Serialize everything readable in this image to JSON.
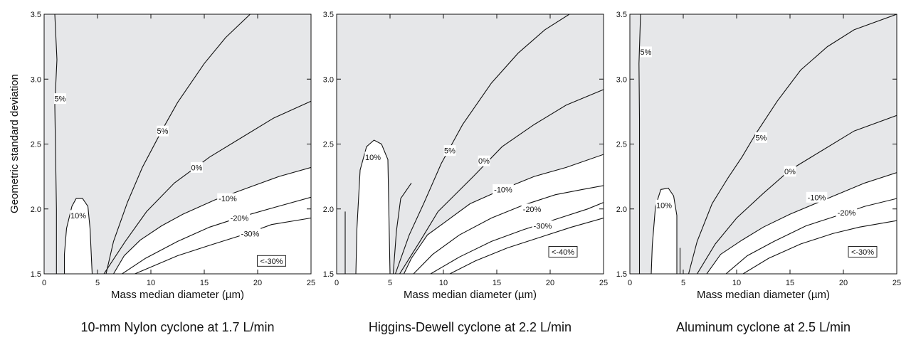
{
  "ylabel": "Geometric standard deviation",
  "chart_data": [
    {
      "type": "contour",
      "caption": "10-mm Nylon cyclone at 1.7 L/min",
      "xlabel": "Mass median diameter (µm)",
      "xlim": [
        0,
        25
      ],
      "ylim": [
        1.5,
        3.5
      ],
      "xticks": [
        0,
        5,
        10,
        15,
        20,
        25
      ],
      "yticks": [
        1.5,
        2.0,
        2.5,
        3.0,
        3.5
      ],
      "shaded_region_color": "#e6e7e9",
      "boundary_label": "<-30%",
      "boundary_label_pos": [
        21.3,
        1.6
      ],
      "unshaded_regions": [
        {
          "name": "10% island",
          "points": [
            [
              1.9,
              1.5
            ],
            [
              1.9,
              1.65
            ],
            [
              2.1,
              1.85
            ],
            [
              2.6,
              2.02
            ],
            [
              3.0,
              2.08
            ],
            [
              3.6,
              2.08
            ],
            [
              4.1,
              2.02
            ],
            [
              4.3,
              1.85
            ],
            [
              4.5,
              1.5
            ]
          ]
        },
        {
          "name": "below -10%",
          "points": [
            [
              25,
              1.5
            ],
            [
              25,
              2.32
            ],
            [
              22,
              2.25
            ],
            [
              19,
              2.16
            ],
            [
              16,
              2.07
            ],
            [
              13,
              1.96
            ],
            [
              11,
              1.87
            ],
            [
              9,
              1.76
            ],
            [
              7.5,
              1.64
            ],
            [
              6.5,
              1.5
            ]
          ]
        }
      ],
      "contours": [
        {
          "level": "5%",
          "points": [
            [
              1.15,
              1.5
            ],
            [
              1.15,
              2.0
            ],
            [
              1.0,
              2.8
            ],
            [
              1.2,
              3.15
            ],
            [
              1.0,
              3.5
            ]
          ],
          "label_pos": [
            1.5,
            2.85
          ]
        },
        {
          "level": "5%",
          "points": [
            [
              5.8,
              1.5
            ],
            [
              6.5,
              1.75
            ],
            [
              7.8,
              2.05
            ],
            [
              9.2,
              2.32
            ],
            [
              11,
              2.6
            ],
            [
              12.5,
              2.82
            ],
            [
              15,
              3.12
            ],
            [
              17,
              3.32
            ],
            [
              19.3,
              3.5
            ]
          ],
          "label_pos": [
            11.1,
            2.6
          ]
        },
        {
          "level": "0%",
          "points": [
            [
              5.6,
              1.5
            ],
            [
              7.6,
              1.75
            ],
            [
              9.6,
              1.98
            ],
            [
              12.2,
              2.2
            ],
            [
              15.5,
              2.4
            ],
            [
              18.5,
              2.55
            ],
            [
              21.5,
              2.7
            ],
            [
              25,
              2.83
            ]
          ],
          "label_pos": [
            14.3,
            2.32
          ]
        },
        {
          "level": "-10%",
          "points": [
            [
              6.5,
              1.5
            ],
            [
              7.5,
              1.64
            ],
            [
              9,
              1.76
            ],
            [
              11,
              1.87
            ],
            [
              13,
              1.96
            ],
            [
              16,
              2.07
            ],
            [
              19,
              2.16
            ],
            [
              22,
              2.25
            ],
            [
              25,
              2.32
            ]
          ],
          "label_pos": [
            17.2,
            2.08
          ]
        },
        {
          "level": "-20%",
          "points": [
            [
              7.3,
              1.5
            ],
            [
              9.5,
              1.62
            ],
            [
              12.5,
              1.75
            ],
            [
              15.5,
              1.86
            ],
            [
              18.5,
              1.94
            ],
            [
              21.5,
              2.01
            ],
            [
              25,
              2.09
            ]
          ],
          "label_pos": [
            18.3,
            1.93
          ]
        },
        {
          "level": "-30%",
          "points": [
            [
              8.5,
              1.5
            ],
            [
              12.5,
              1.64
            ],
            [
              15.5,
              1.72
            ],
            [
              19,
              1.81
            ],
            [
              21.3,
              1.88
            ],
            [
              25,
              1.93
            ]
          ],
          "label_pos": [
            19.3,
            1.81
          ]
        }
      ]
    },
    {
      "type": "contour",
      "caption": "Higgins-Dewell cyclone at 2.2 L/min",
      "xlabel": "Mass median diameter (µm)",
      "xlim": [
        0,
        25
      ],
      "ylim": [
        1.5,
        3.5
      ],
      "xticks": [
        0,
        5,
        10,
        15,
        20,
        25
      ],
      "yticks": [
        1.5,
        2.0,
        2.5,
        3.0,
        3.5
      ],
      "shaded_region_color": "#e6e7e9",
      "boundary_label": "<-40%",
      "boundary_label_pos": [
        21.2,
        1.67
      ],
      "unshaded_regions": [
        {
          "name": "10% island",
          "points": [
            [
              1.8,
              1.5
            ],
            [
              1.9,
              1.85
            ],
            [
              2.2,
              2.3
            ],
            [
              2.8,
              2.48
            ],
            [
              3.5,
              2.53
            ],
            [
              4.2,
              2.5
            ],
            [
              4.8,
              2.38
            ],
            [
              5.0,
              1.5
            ]
          ]
        },
        {
          "name": "below -10%",
          "points": [
            [
              25,
              1.5
            ],
            [
              25,
              2.42
            ],
            [
              21.5,
              2.32
            ],
            [
              18.5,
              2.25
            ],
            [
              15.5,
              2.15
            ],
            [
              12.5,
              2.04
            ],
            [
              10.5,
              1.92
            ],
            [
              8.5,
              1.8
            ],
            [
              7,
              1.62
            ],
            [
              6.3,
              1.5
            ]
          ]
        }
      ],
      "contours": [
        {
          "level": "10%",
          "points": [
            [
              0.8,
              1.5
            ],
            [
              0.8,
              1.98
            ]
          ],
          "label_pos": null
        },
        {
          "level": "5%",
          "points": [
            [
              5.3,
              1.5
            ],
            [
              5.6,
              1.83
            ],
            [
              6,
              2.08
            ],
            [
              7,
              2.2
            ]
          ],
          "label_pos": null
        },
        {
          "level": "5%",
          "points": [
            [
              5.5,
              1.5
            ],
            [
              6.8,
              1.8
            ],
            [
              8.2,
              2.05
            ],
            [
              9.8,
              2.35
            ],
            [
              11.8,
              2.65
            ],
            [
              14.5,
              2.97
            ],
            [
              17,
              3.2
            ],
            [
              19.5,
              3.38
            ],
            [
              21.8,
              3.5
            ]
          ],
          "label_pos": [
            10.6,
            2.45
          ]
        },
        {
          "level": "0%",
          "points": [
            [
              5.9,
              1.5
            ],
            [
              7.8,
              1.75
            ],
            [
              9.5,
              1.98
            ],
            [
              12.8,
              2.25
            ],
            [
              15.5,
              2.48
            ],
            [
              18.5,
              2.65
            ],
            [
              21.5,
              2.8
            ],
            [
              25,
              2.92
            ]
          ],
          "label_pos": [
            13.8,
            2.37
          ]
        },
        {
          "level": "-10%",
          "points": [
            [
              6.3,
              1.5
            ],
            [
              7,
              1.62
            ],
            [
              8.5,
              1.8
            ],
            [
              10.5,
              1.92
            ],
            [
              12.5,
              2.04
            ],
            [
              15.5,
              2.15
            ],
            [
              18.5,
              2.25
            ],
            [
              21.5,
              2.32
            ],
            [
              25,
              2.42
            ]
          ],
          "label_pos": [
            15.6,
            2.15
          ]
        },
        {
          "level": "-20%",
          "points": [
            [
              7.2,
              1.5
            ],
            [
              9,
              1.65
            ],
            [
              11.5,
              1.8
            ],
            [
              14.5,
              1.93
            ],
            [
              17.5,
              2.03
            ],
            [
              20.5,
              2.11
            ],
            [
              23,
              2.15
            ],
            [
              25,
              2.18
            ]
          ],
          "label_pos": [
            18.3,
            2.0
          ]
        },
        {
          "level": "-30%",
          "points": [
            [
              8.8,
              1.5
            ],
            [
              11.5,
              1.63
            ],
            [
              14.5,
              1.75
            ],
            [
              17.5,
              1.84
            ],
            [
              20.5,
              1.92
            ],
            [
              23.5,
              2.0
            ],
            [
              25,
              2.05
            ]
          ],
          "label_pos": [
            19.3,
            1.87
          ]
        },
        {
          "level": "-40%",
          "points": [
            [
              10.6,
              1.5
            ],
            [
              13,
              1.6
            ],
            [
              16,
              1.7
            ],
            [
              19,
              1.78
            ],
            [
              22,
              1.86
            ],
            [
              25,
              1.93
            ]
          ],
          "label_pos": null
        }
      ]
    },
    {
      "type": "contour",
      "caption": "Aluminum cyclone at 2.5 L/min",
      "xlabel": "Mass median diameter (µm)",
      "xlim": [
        0,
        25
      ],
      "ylim": [
        1.5,
        3.5
      ],
      "xticks": [
        0,
        5,
        10,
        15,
        20,
        25
      ],
      "yticks": [
        1.5,
        2.0,
        2.5,
        3.0,
        3.5
      ],
      "shaded_region_color": "#e6e7e9",
      "boundary_label": "<-30%",
      "boundary_label_pos": [
        21.8,
        1.67
      ],
      "unshaded_regions": [
        {
          "name": "10% island",
          "points": [
            [
              2.0,
              1.5
            ],
            [
              2.1,
              1.72
            ],
            [
              2.4,
              2.02
            ],
            [
              2.9,
              2.15
            ],
            [
              3.6,
              2.16
            ],
            [
              4.1,
              2.1
            ],
            [
              4.4,
              1.95
            ],
            [
              4.4,
              1.5
            ]
          ]
        },
        {
          "name": "below -10%",
          "points": [
            [
              25,
              1.5
            ],
            [
              25,
              2.28
            ],
            [
              22,
              2.2
            ],
            [
              18.5,
              2.08
            ],
            [
              15,
              1.96
            ],
            [
              12.5,
              1.86
            ],
            [
              10.5,
              1.76
            ],
            [
              8.5,
              1.65
            ],
            [
              7.2,
              1.5
            ]
          ]
        }
      ],
      "contours": [
        {
          "level": "5%",
          "points": [
            [
              0.9,
              1.5
            ],
            [
              0.9,
              2.7
            ],
            [
              0.85,
              3.12
            ],
            [
              1.0,
              3.5
            ]
          ],
          "label_pos": [
            1.5,
            3.21
          ]
        },
        {
          "level": "5%",
          "points": [
            [
              4.7,
              1.5
            ],
            [
              4.7,
              1.7
            ]
          ],
          "label_pos": null
        },
        {
          "level": "5%",
          "points": [
            [
              5.5,
              1.5
            ],
            [
              6.3,
              1.75
            ],
            [
              7.7,
              2.04
            ],
            [
              9.2,
              2.24
            ],
            [
              10.5,
              2.4
            ],
            [
              11.8,
              2.58
            ],
            [
              13.8,
              2.83
            ],
            [
              16,
              3.07
            ],
            [
              18.5,
              3.25
            ],
            [
              21,
              3.38
            ],
            [
              25,
              3.5
            ]
          ],
          "label_pos": [
            12.3,
            2.55
          ]
        },
        {
          "level": "0%",
          "points": [
            [
              6.3,
              1.5
            ],
            [
              8,
              1.73
            ],
            [
              10,
              1.93
            ],
            [
              12.5,
              2.12
            ],
            [
              15,
              2.3
            ],
            [
              18,
              2.45
            ],
            [
              21,
              2.6
            ],
            [
              25,
              2.72
            ]
          ],
          "label_pos": [
            15.0,
            2.29
          ]
        },
        {
          "level": "-10%",
          "points": [
            [
              7.2,
              1.5
            ],
            [
              8.5,
              1.65
            ],
            [
              10.5,
              1.76
            ],
            [
              12.5,
              1.86
            ],
            [
              15,
              1.96
            ],
            [
              18.5,
              2.08
            ],
            [
              22,
              2.2
            ],
            [
              25,
              2.28
            ]
          ],
          "label_pos": [
            17.5,
            2.09
          ]
        },
        {
          "level": "-20%",
          "points": [
            [
              9,
              1.5
            ],
            [
              11,
              1.64
            ],
            [
              13.5,
              1.75
            ],
            [
              16.5,
              1.87
            ],
            [
              19.5,
              1.95
            ],
            [
              22,
              2.02
            ],
            [
              25,
              2.08
            ]
          ],
          "label_pos": [
            20.3,
            1.97
          ]
        },
        {
          "level": "-30%",
          "points": [
            [
              10.6,
              1.5
            ],
            [
              13,
              1.62
            ],
            [
              16,
              1.73
            ],
            [
              19,
              1.81
            ],
            [
              21.5,
              1.86
            ],
            [
              25,
              1.91
            ]
          ],
          "label_pos": null
        }
      ]
    }
  ]
}
